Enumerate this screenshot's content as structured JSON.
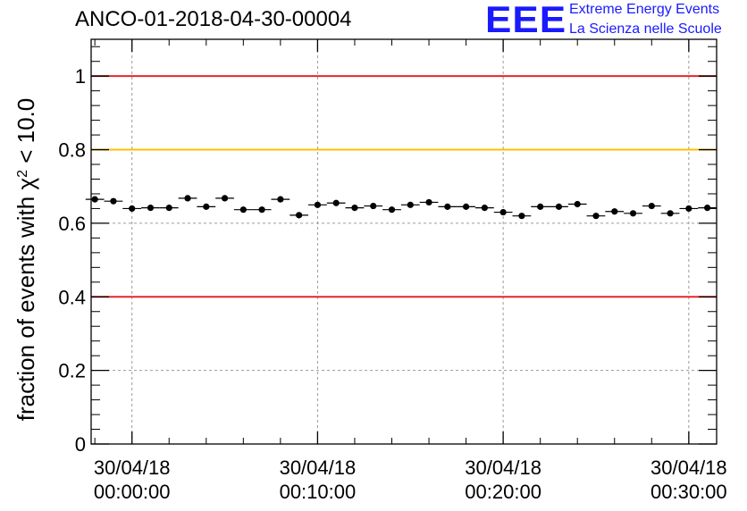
{
  "chart_data": {
    "type": "scatter",
    "title": "ANCO-01-2018-04-30-00004",
    "ylabel": "fraction of events with χ",
    "ylabel_sup": "2",
    "ylabel_tail": " < 10.0",
    "xlabel": "",
    "xlim_minutes": [
      -2.2,
      31.5
    ],
    "ylim": [
      0,
      1.1
    ],
    "y_ticks": [
      {
        "value": 0,
        "label": "0"
      },
      {
        "value": 0.2,
        "label": "0.2"
      },
      {
        "value": 0.4,
        "label": "0.4"
      },
      {
        "value": 0.6,
        "label": "0.6"
      },
      {
        "value": 0.8,
        "label": "0.8"
      },
      {
        "value": 1,
        "label": "1"
      }
    ],
    "x_ticks": [
      {
        "value": 0,
        "date": "30/04/18",
        "time": "00:00:00"
      },
      {
        "value": 10,
        "date": "30/04/18",
        "time": "00:10:00"
      },
      {
        "value": 20,
        "date": "30/04/18",
        "time": "00:20:00"
      },
      {
        "value": 30,
        "date": "30/04/18",
        "time": "00:30:00"
      }
    ],
    "grid": true,
    "reference_lines": [
      {
        "value": 1.0,
        "color": "#e8242b"
      },
      {
        "value": 0.8,
        "color": "#ffc000"
      },
      {
        "value": 0.4,
        "color": "#e8242b"
      }
    ],
    "bin_width_minutes": 1,
    "series": [
      {
        "name": "fraction",
        "color": "#000000",
        "x": [
          -2,
          -1,
          0,
          1,
          2,
          3,
          4,
          5,
          6,
          7,
          8,
          9,
          10,
          11,
          12,
          13,
          14,
          15,
          16,
          17,
          18,
          19,
          20,
          21,
          22,
          23,
          24,
          25,
          26,
          27,
          28,
          29,
          30,
          31
        ],
        "values": [
          0.665,
          0.66,
          0.64,
          0.642,
          0.642,
          0.668,
          0.645,
          0.668,
          0.637,
          0.637,
          0.665,
          0.622,
          0.65,
          0.655,
          0.642,
          0.647,
          0.637,
          0.65,
          0.657,
          0.645,
          0.645,
          0.642,
          0.63,
          0.62,
          0.645,
          0.645,
          0.652,
          0.62,
          0.632,
          0.627,
          0.647,
          0.627,
          0.64,
          0.642
        ],
        "errors": [
          0.008,
          0.008,
          0.008,
          0.008,
          0.008,
          0.008,
          0.008,
          0.008,
          0.008,
          0.008,
          0.008,
          0.008,
          0.008,
          0.008,
          0.008,
          0.008,
          0.008,
          0.008,
          0.008,
          0.008,
          0.008,
          0.008,
          0.008,
          0.008,
          0.008,
          0.008,
          0.008,
          0.008,
          0.008,
          0.008,
          0.008,
          0.008,
          0.008,
          0.008
        ]
      }
    ]
  },
  "logo": {
    "mark": "EEE",
    "line1": "Extreme Energy Events",
    "line2": "La Scienza nelle Scuole"
  }
}
